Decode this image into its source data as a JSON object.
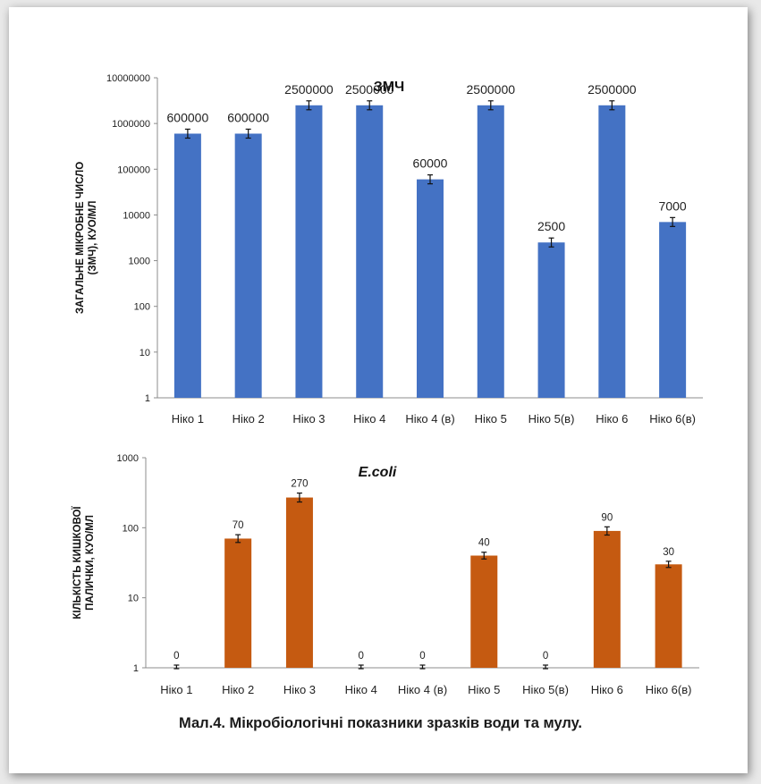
{
  "caption": "Мал.4. Мікробіологічні показники зразків води та мулу.",
  "chart_data": [
    {
      "type": "bar",
      "title": "ЗМЧ",
      "ylabel": [
        "ЗАГАЛЬНЕ МІКРОБНЕ ЧИСЛО",
        "(ЗМЧ), КУО/МЛ"
      ],
      "yscale": "log",
      "ylim": [
        1,
        10000000
      ],
      "yticks": [
        "1",
        "10",
        "100",
        "1000",
        "10000",
        "100000",
        "1000000",
        "10000000"
      ],
      "categories": [
        "Ніко 1",
        "Ніко 2",
        "Ніко 3",
        "Ніко 4",
        "Ніко 4 (в)",
        "Ніко 5",
        "Ніко 5(в)",
        "Ніко 6",
        "Ніко 6(в)"
      ],
      "values": [
        600000,
        600000,
        2500000,
        2500000,
        60000,
        2500000,
        2500,
        2500000,
        7000
      ],
      "labels": [
        "600000",
        "600000",
        "2500000",
        "2500000",
        "60000",
        "2500000",
        "2500",
        "2500000",
        "7000"
      ],
      "color": "#4472c4",
      "error_bars": true,
      "grid": false
    },
    {
      "type": "bar",
      "title": "E.coli",
      "ylabel": [
        "КІЛЬКІСТЬ КИШКОВОЇ",
        "ПАЛИЧКИ, КУО/МЛ"
      ],
      "yscale": "log",
      "ylim": [
        1,
        1000
      ],
      "yticks": [
        "1",
        "10",
        "100",
        "1000"
      ],
      "categories": [
        "Ніко 1",
        "Ніко 2",
        "Ніко 3",
        "Ніко 4",
        "Ніко 4 (в)",
        "Ніко 5",
        "Ніко 5(в)",
        "Ніко 6",
        "Ніко 6(в)"
      ],
      "values": [
        0,
        70,
        270,
        0,
        0,
        40,
        0,
        90,
        30
      ],
      "labels": [
        "0",
        "70",
        "270",
        "0",
        "0",
        "40",
        "0",
        "90",
        "30"
      ],
      "color": "#c55a11",
      "error_bars": true,
      "grid": false
    }
  ]
}
